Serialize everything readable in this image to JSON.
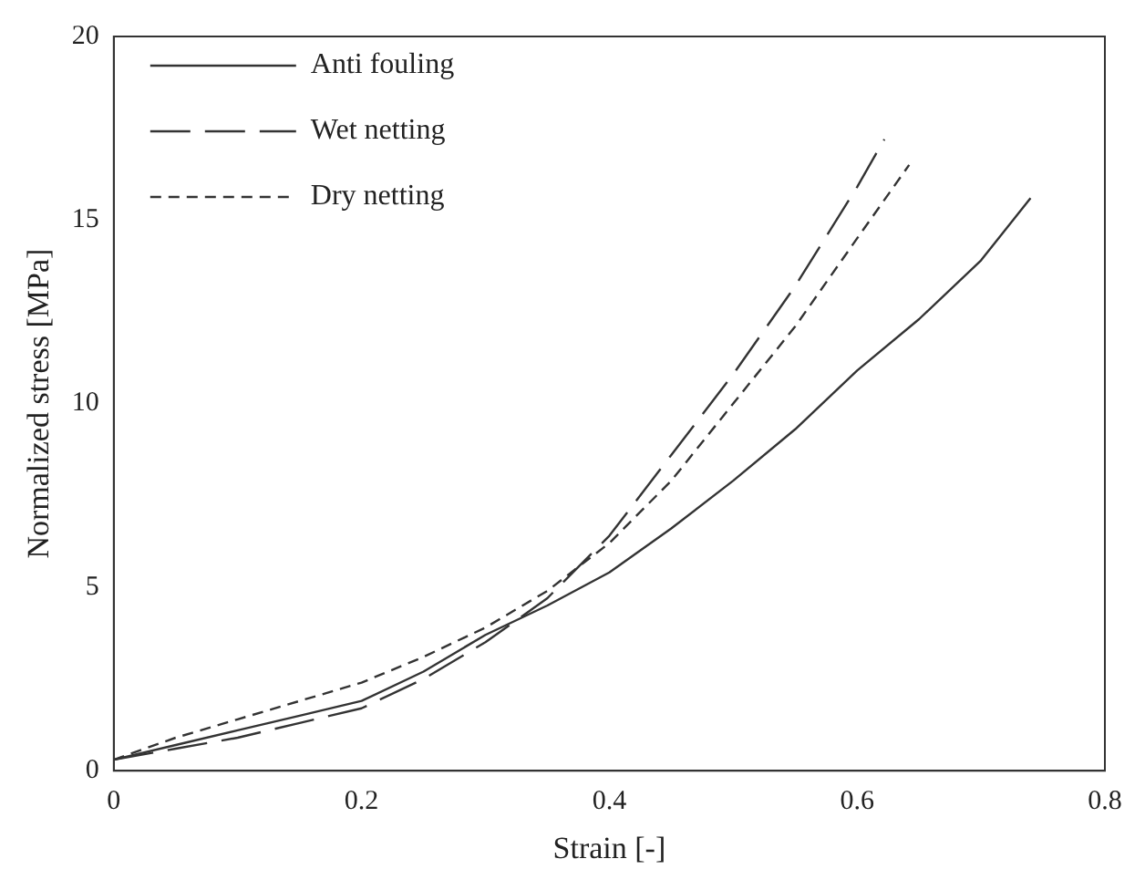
{
  "chart_data": {
    "type": "line",
    "xlabel": "Strain [-]",
    "ylabel": "Normalized stress [MPa]",
    "xlim": [
      0,
      0.8
    ],
    "xticks": [
      0,
      0.2,
      0.4,
      0.6,
      0.8
    ],
    "ylim": [
      0,
      20
    ],
    "yticks": [
      0,
      5,
      10,
      15,
      20
    ],
    "grid": false,
    "legend": "top left",
    "marker": "none",
    "series": [
      {
        "name": "Anti fouling",
        "color": "#333333",
        "line_style": "solid",
        "x": [
          0,
          0.05,
          0.1,
          0.15,
          0.2,
          0.25,
          0.3,
          0.35,
          0.4,
          0.45,
          0.5,
          0.55,
          0.6,
          0.65,
          0.7,
          0.74
        ],
        "values": [
          0.3,
          0.7,
          1.1,
          1.5,
          1.9,
          2.7,
          3.7,
          4.5,
          5.4,
          6.6,
          7.9,
          9.3,
          10.9,
          12.3,
          13.9,
          15.6
        ]
      },
      {
        "name": "Wet netting",
        "color": "#333333",
        "line_style": "longdash",
        "x": [
          0,
          0.05,
          0.1,
          0.15,
          0.2,
          0.25,
          0.3,
          0.35,
          0.4,
          0.45,
          0.5,
          0.55,
          0.6,
          0.622
        ],
        "values": [
          0.3,
          0.6,
          0.9,
          1.3,
          1.7,
          2.5,
          3.5,
          4.7,
          6.4,
          8.6,
          10.8,
          13.2,
          15.9,
          17.2
        ]
      },
      {
        "name": "Dry netting",
        "color": "#333333",
        "line_style": "dashed",
        "x": [
          0,
          0.05,
          0.1,
          0.15,
          0.2,
          0.25,
          0.3,
          0.35,
          0.4,
          0.45,
          0.5,
          0.55,
          0.6,
          0.642
        ],
        "values": [
          0.3,
          0.9,
          1.4,
          1.9,
          2.4,
          3.1,
          3.9,
          4.9,
          6.2,
          7.9,
          10.0,
          12.1,
          14.5,
          16.5
        ]
      }
    ]
  }
}
